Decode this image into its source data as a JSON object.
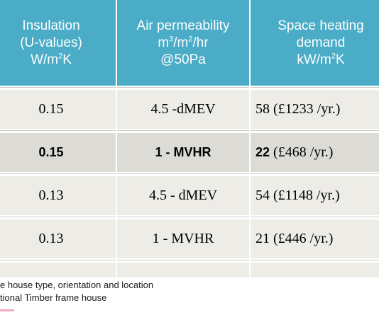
{
  "header": {
    "col1": [
      "Insulation",
      "(U-values)",
      "W/m",
      "2",
      "K"
    ],
    "col2": [
      "Air permeability",
      "m",
      "3",
      "/m",
      "2",
      "/hr",
      "@50Pa"
    ],
    "col3": [
      "Space heating",
      "demand",
      "kW/m",
      "2",
      "K"
    ]
  },
  "rows": [
    {
      "u": "0.15",
      "air": "4.5 -dMEV",
      "heat_bold": "",
      "heat": "58 (£1233 /yr.)"
    },
    {
      "u": "0.15",
      "air": "1 - MVHR",
      "heat_bold": "22",
      "heat": "(£468 /yr.)"
    },
    {
      "u": "0.13",
      "air": "4.5 - dMEV",
      "heat_bold": "",
      "heat": "54 (£1148 /yr.)"
    },
    {
      "u": "0.13",
      "air": "1 - MVHR",
      "heat_bold": "",
      "heat": "21 (£446 /yr.)"
    }
  ],
  "notes": [
    "e house type, orientation and location",
    "tional Timber frame house"
  ],
  "colors": {
    "header": "#4aacc6",
    "row_light": "#edece7",
    "row_dark": "#dcdbd6"
  }
}
